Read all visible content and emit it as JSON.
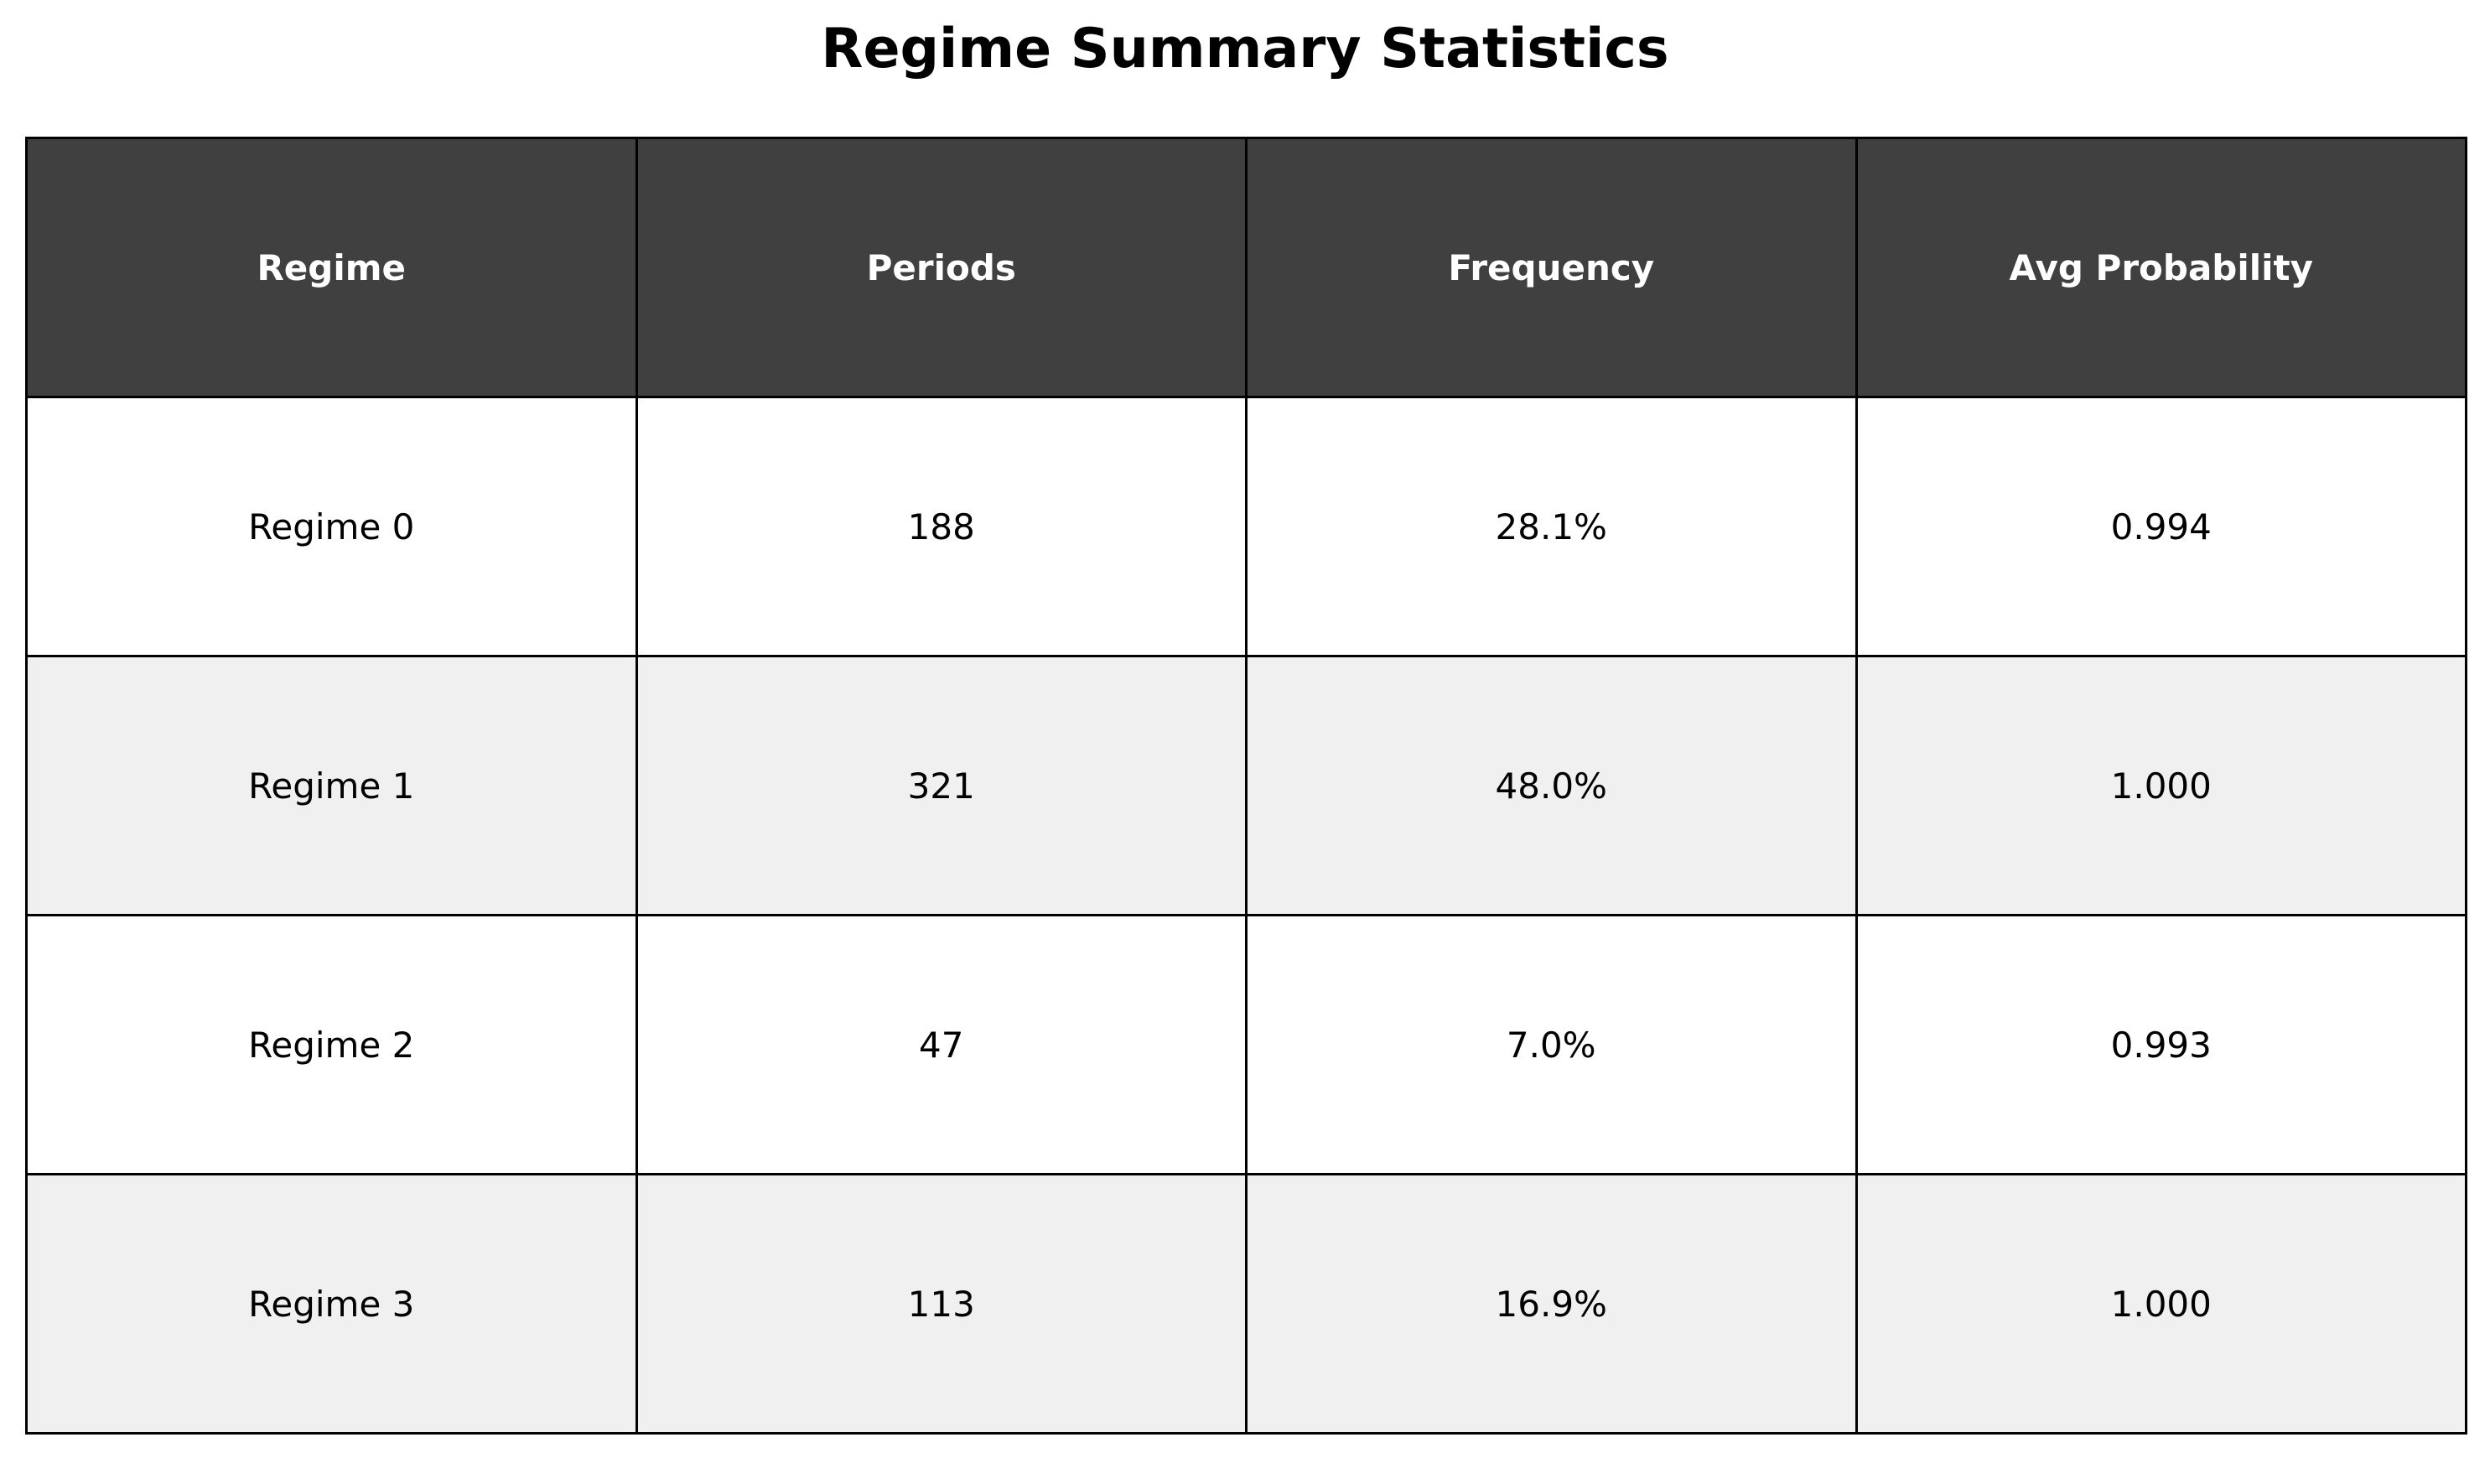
{
  "chart_data": {
    "type": "table",
    "title": "Regime Summary Statistics",
    "columns": [
      "Regime",
      "Periods",
      "Frequency",
      "Avg Probability"
    ],
    "rows": [
      [
        "Regime 0",
        "188",
        "28.1%",
        "0.994"
      ],
      [
        "Regime 1",
        "321",
        "48.0%",
        "1.000"
      ],
      [
        "Regime 2",
        "47",
        "7.0%",
        "0.993"
      ],
      [
        "Regime 3",
        "113",
        "16.9%",
        "1.000"
      ]
    ],
    "colors": {
      "header_background": "#404040",
      "header_text": "#ffffff",
      "row_background": "#ffffff",
      "alt_row_background": "#f0f0f0",
      "border": "#000000"
    }
  }
}
